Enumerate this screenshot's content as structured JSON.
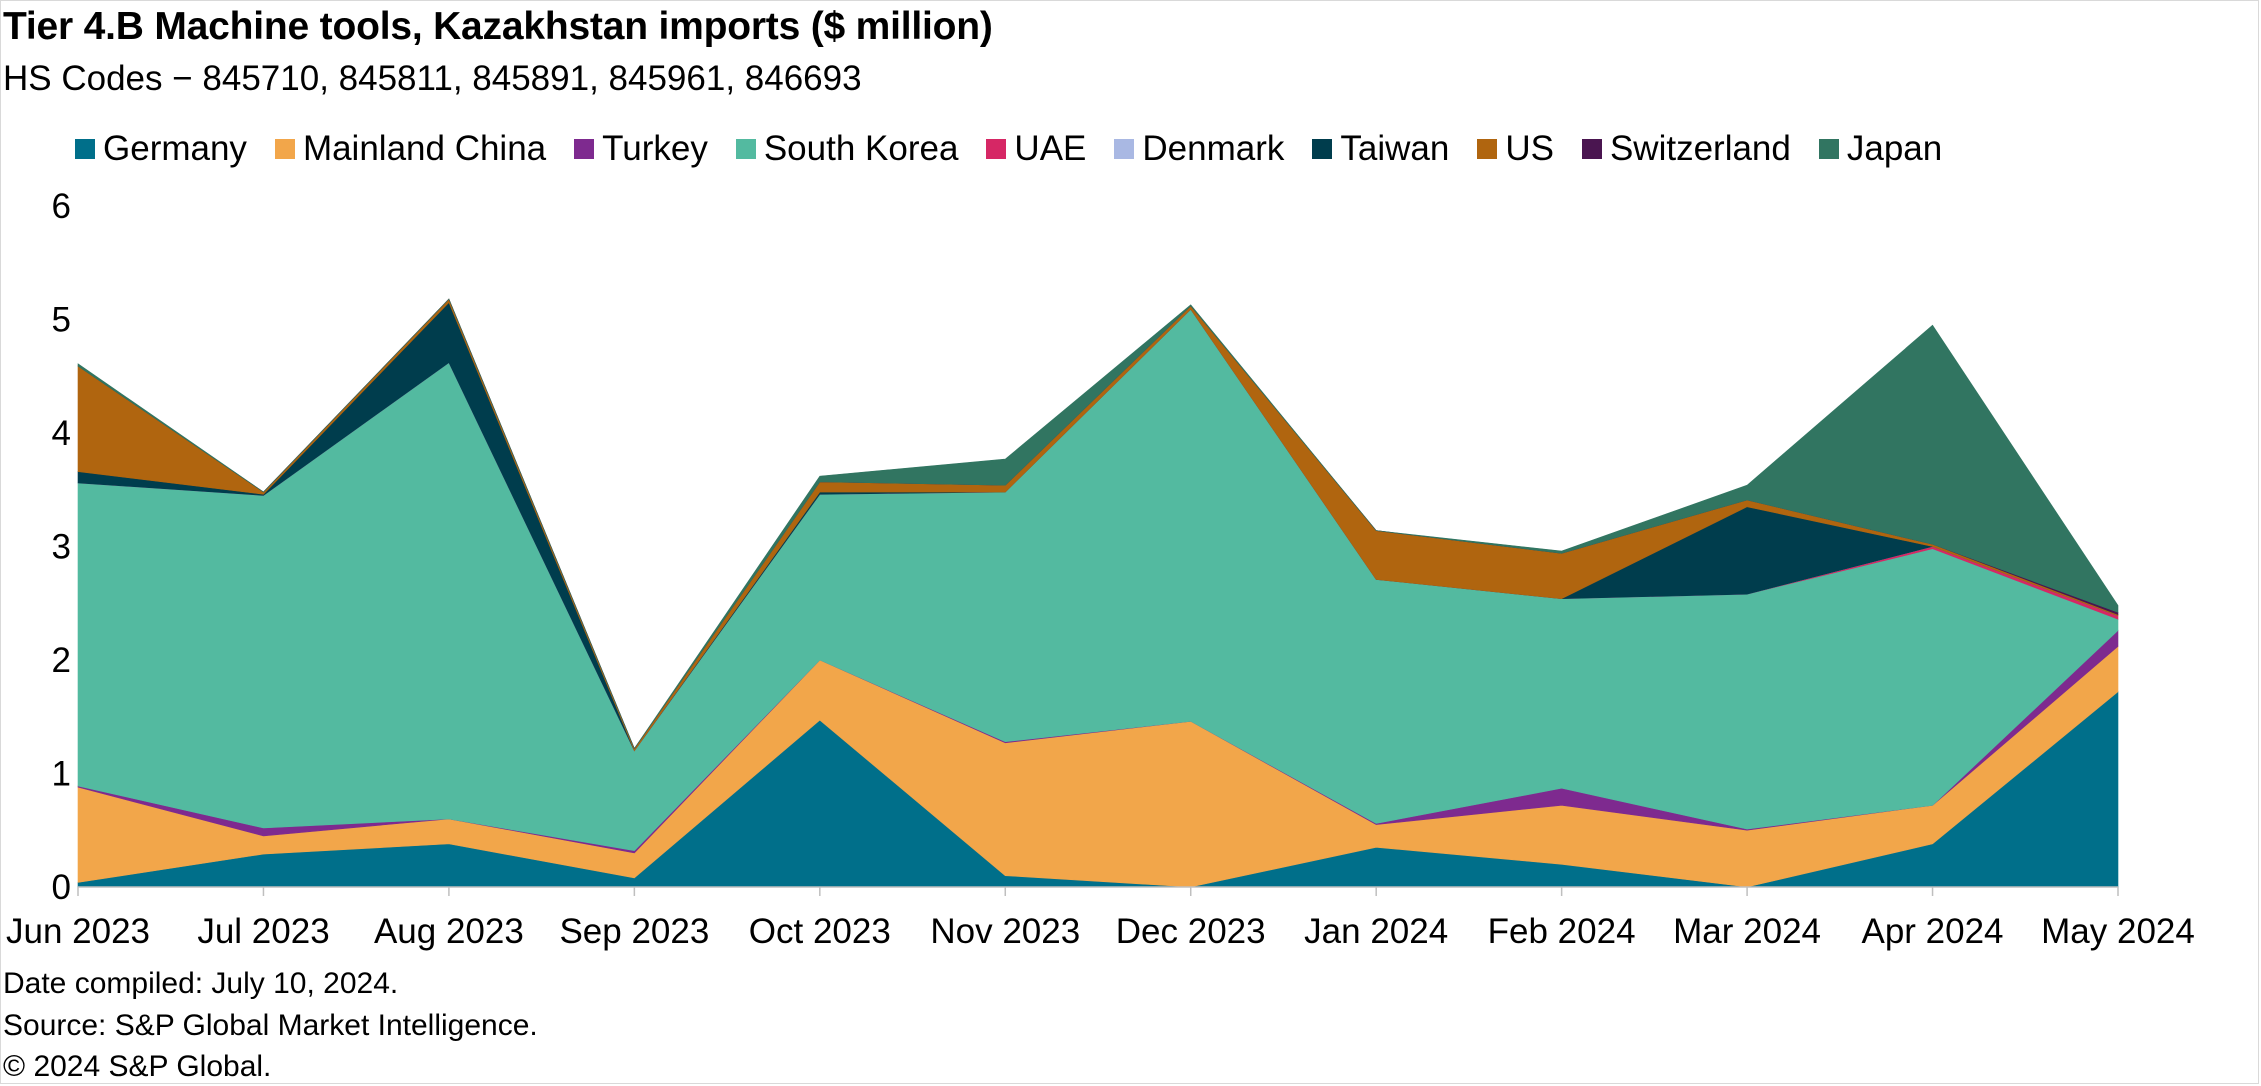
{
  "title": "Tier 4.B Machine tools, Kazakhstan imports ($ million)",
  "subtitle": "HS Codes − 845710, 845811, 845891, 845961, 846693",
  "footer": {
    "date_compiled": "Date compiled: July 10, 2024.",
    "source": "Source: S&P Global Market Intelligence.",
    "copyright": "© 2024 S&P Global."
  },
  "chart_data": {
    "type": "area",
    "stacked": true,
    "title": "Tier 4.B Machine tools, Kazakhstan imports ($ million)",
    "ylim": [
      0,
      6
    ],
    "yticks": [
      0,
      1,
      2,
      3,
      4,
      5,
      6
    ],
    "grid": false,
    "legend_position": "top",
    "categories": [
      "Jun 2023",
      "Jul 2023",
      "Aug 2023",
      "Sep 2023",
      "Oct 2023",
      "Nov 2023",
      "Dec 2023",
      "Jan 2024",
      "Feb 2024",
      "Mar 2024",
      "Apr 2024",
      "May 2024"
    ],
    "series": [
      {
        "name": "Germany",
        "color": "#006f8a",
        "values": [
          0.04,
          0.29,
          0.38,
          0.08,
          1.47,
          0.1,
          0.0,
          0.35,
          0.2,
          0.0,
          0.38,
          1.72
        ]
      },
      {
        "name": "Mainland China",
        "color": "#f2a64a",
        "values": [
          0.84,
          0.16,
          0.22,
          0.22,
          0.53,
          1.17,
          1.46,
          0.2,
          0.52,
          0.5,
          0.34,
          0.4
        ]
      },
      {
        "name": "Turkey",
        "color": "#7e2a8f",
        "values": [
          0.01,
          0.07,
          0.0,
          0.02,
          0.0,
          0.01,
          0.0,
          0.01,
          0.15,
          0.01,
          0.0,
          0.14
        ]
      },
      {
        "name": "South Korea",
        "color": "#53baa0",
        "values": [
          2.67,
          2.93,
          4.02,
          0.88,
          1.46,
          2.2,
          3.63,
          2.15,
          1.67,
          2.07,
          2.26,
          0.1
        ]
      },
      {
        "name": "UAE",
        "color": "#d62765",
        "values": [
          0.0,
          0.0,
          0.0,
          0.0,
          0.0,
          0.0,
          0.0,
          0.0,
          0.0,
          0.0,
          0.02,
          0.03
        ]
      },
      {
        "name": "Denmark",
        "color": "#a9b8e3",
        "values": [
          0.0,
          0.0,
          0.0,
          0.0,
          0.0,
          0.0,
          0.0,
          0.0,
          0.0,
          0.0,
          0.0,
          0.0
        ]
      },
      {
        "name": "Taiwan",
        "color": "#003d4d",
        "values": [
          0.1,
          0.01,
          0.53,
          0.0,
          0.02,
          0.0,
          0.0,
          0.0,
          0.0,
          0.77,
          0.0,
          0.0
        ]
      },
      {
        "name": "US",
        "color": "#b0650f",
        "values": [
          0.93,
          0.02,
          0.03,
          0.02,
          0.09,
          0.06,
          0.03,
          0.43,
          0.4,
          0.06,
          0.02,
          0.01
        ]
      },
      {
        "name": "Switzerland",
        "color": "#4a1550",
        "values": [
          0.0,
          0.0,
          0.0,
          0.0,
          0.0,
          0.0,
          0.0,
          0.0,
          0.0,
          0.0,
          0.0,
          0.02
        ]
      },
      {
        "name": "Japan",
        "color": "#317561",
        "values": [
          0.02,
          0.0,
          0.0,
          0.0,
          0.05,
          0.23,
          0.01,
          0.0,
          0.02,
          0.13,
          1.93,
          0.06
        ]
      }
    ]
  }
}
